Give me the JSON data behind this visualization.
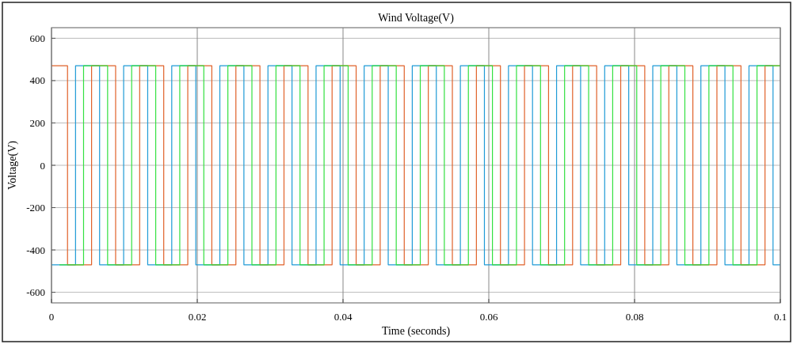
{
  "chart_data": {
    "type": "step",
    "title": "Wind Voltage(V)",
    "xlabel": "Time (seconds)",
    "ylabel": "Voltage(V)",
    "xlim": [
      0,
      0.1
    ],
    "ylim": [
      -650,
      650
    ],
    "xticks": [
      0,
      0.02,
      0.04,
      0.06,
      0.08,
      0.1
    ],
    "yticks": [
      -600,
      -400,
      -200,
      0,
      200,
      400,
      600
    ],
    "grid": true,
    "line_style": "solid",
    "marker": "none",
    "series": [
      {
        "color": "#1f9bd6",
        "x": [
          0,
          0.0033,
          0.0066,
          0.0099,
          0.0132,
          0.0165,
          0.0198,
          0.0231,
          0.0264,
          0.0297,
          0.033,
          0.0363,
          0.0396,
          0.0429,
          0.0462,
          0.0495,
          0.0528,
          0.0561,
          0.0594,
          0.0627,
          0.066,
          0.0693,
          0.0726,
          0.0759,
          0.0792,
          0.0825,
          0.0858,
          0.0891,
          0.0924,
          0.0957,
          0.099,
          0.1
        ],
        "values": [
          -470,
          470,
          -470,
          470,
          -470,
          470,
          -470,
          470,
          -470,
          470,
          -470,
          470,
          -470,
          470,
          -470,
          470,
          -470,
          470,
          -470,
          470,
          -470,
          470,
          -470,
          470,
          -470,
          470,
          -470,
          470,
          -470,
          470,
          -470,
          -470
        ]
      },
      {
        "color": "#e0622a",
        "x": [
          0,
          0.0022,
          0.0055,
          0.0088,
          0.0121,
          0.0154,
          0.0187,
          0.022,
          0.0253,
          0.0286,
          0.0319,
          0.0352,
          0.0385,
          0.0418,
          0.0451,
          0.0484,
          0.0517,
          0.055,
          0.0583,
          0.0616,
          0.0649,
          0.0682,
          0.0715,
          0.0748,
          0.0781,
          0.0814,
          0.0847,
          0.088,
          0.0913,
          0.0946,
          0.0979,
          0.1
        ],
        "values": [
          470,
          -470,
          470,
          -470,
          470,
          -470,
          470,
          -470,
          470,
          -470,
          470,
          -470,
          470,
          -470,
          470,
          -470,
          470,
          -470,
          470,
          -470,
          470,
          -470,
          470,
          -470,
          470,
          -470,
          470,
          -470,
          470,
          -470,
          470,
          470
        ]
      },
      {
        "color": "#33e040",
        "x": [
          0.0011,
          0.0044,
          0.0077,
          0.011,
          0.0143,
          0.0176,
          0.0209,
          0.0242,
          0.0275,
          0.0308,
          0.0341,
          0.0374,
          0.0407,
          0.044,
          0.0473,
          0.0506,
          0.0539,
          0.0572,
          0.0605,
          0.0638,
          0.0671,
          0.0704,
          0.0737,
          0.077,
          0.0803,
          0.0836,
          0.0869,
          0.0902,
          0.0935,
          0.0968,
          0.1
        ],
        "values": [
          -470,
          470,
          -470,
          470,
          -470,
          470,
          -470,
          470,
          -470,
          470,
          -470,
          470,
          -470,
          470,
          -470,
          470,
          -470,
          470,
          -470,
          470,
          -470,
          470,
          -470,
          470,
          -470,
          470,
          -470,
          470,
          -470,
          470,
          470
        ]
      }
    ]
  }
}
